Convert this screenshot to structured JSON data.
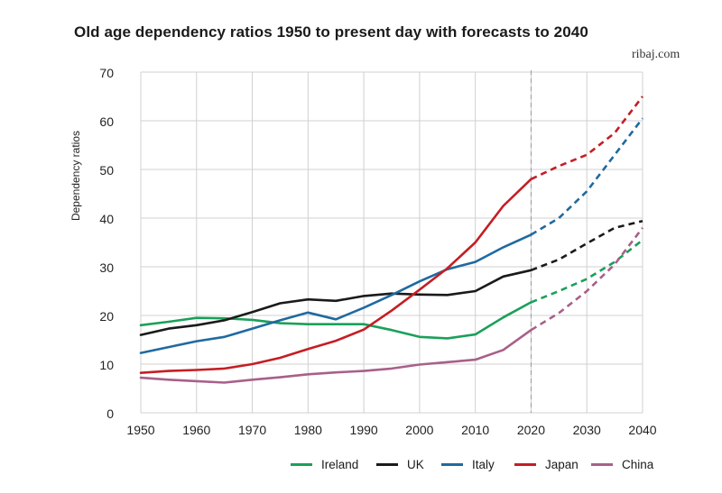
{
  "chart_data": {
    "type": "line",
    "title": "Old age dependency ratios 1950 to present day with forecasts to 2040",
    "source": "ribaj.com",
    "xlabel": "",
    "ylabel": "Dependency ratios",
    "xlim": [
      1950,
      2040
    ],
    "ylim": [
      0,
      70
    ],
    "x_ticks": [
      "1950",
      "1960",
      "1970",
      "1980",
      "1990",
      "2000",
      "2010",
      "2020",
      "2030",
      "2040"
    ],
    "y_ticks": [
      "0",
      "10",
      "20",
      "30",
      "40",
      "50",
      "60",
      "70"
    ],
    "grid": true,
    "forecast_start": 2020,
    "forecast_line_style": "dashed",
    "legend_position": "bottom",
    "x": [
      1950,
      1955,
      1960,
      1965,
      1970,
      1975,
      1980,
      1985,
      1990,
      1995,
      2000,
      2005,
      2010,
      2015,
      2020,
      2025,
      2030,
      2035,
      2040
    ],
    "series": [
      {
        "name": "Ireland",
        "color": "#1aa05a",
        "values": [
          18.0,
          18.7,
          19.5,
          19.4,
          19.1,
          18.4,
          18.2,
          18.2,
          18.2,
          17.0,
          15.6,
          15.3,
          16.1,
          19.6,
          22.7,
          25.0,
          27.5,
          31.0,
          35.5
        ]
      },
      {
        "name": "UK",
        "color": "#1a1a1a",
        "values": [
          16.0,
          17.3,
          18.0,
          19.0,
          20.7,
          22.5,
          23.3,
          23.0,
          24.0,
          24.5,
          24.3,
          24.2,
          25.0,
          28.0,
          29.3,
          31.5,
          34.8,
          38.0,
          39.4
        ]
      },
      {
        "name": "Italy",
        "color": "#1f6aa0",
        "values": [
          12.3,
          13.5,
          14.7,
          15.6,
          17.3,
          19.0,
          20.6,
          19.2,
          21.6,
          24.2,
          27.0,
          29.5,
          31.0,
          34.0,
          36.6,
          40.0,
          45.5,
          53.0,
          60.5
        ]
      },
      {
        "name": "Japan",
        "color": "#c41e24",
        "values": [
          8.2,
          8.6,
          8.8,
          9.1,
          10.0,
          11.3,
          13.1,
          14.8,
          17.1,
          21.0,
          25.3,
          29.7,
          35.0,
          42.5,
          48.0,
          50.7,
          53.0,
          57.5,
          65.0
        ]
      },
      {
        "name": "China",
        "color": "#a8608a",
        "values": [
          7.2,
          6.8,
          6.5,
          6.2,
          6.8,
          7.3,
          7.9,
          8.3,
          8.6,
          9.1,
          9.9,
          10.4,
          10.9,
          12.9,
          17.0,
          20.5,
          25.0,
          30.5,
          38.0
        ]
      }
    ]
  }
}
